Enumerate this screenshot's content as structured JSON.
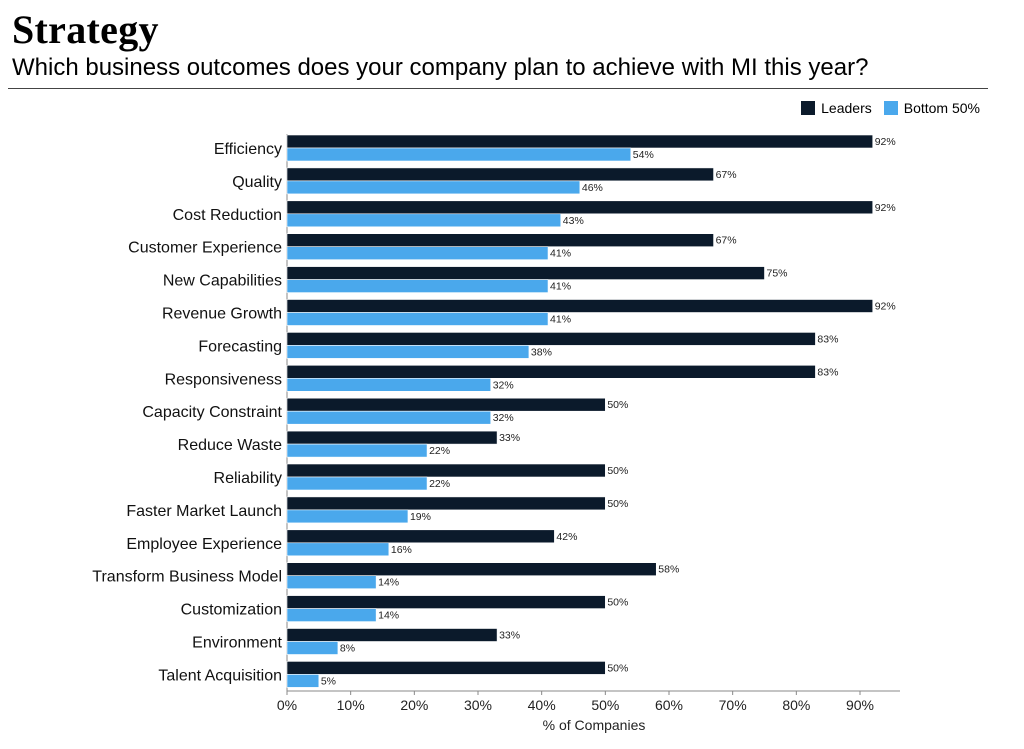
{
  "page": {
    "title": "Strategy",
    "subtitle": "Which business outcomes does your company plan to achieve with MI this year?"
  },
  "chart_data": {
    "type": "bar",
    "orientation": "horizontal",
    "categories": [
      "Efficiency",
      "Quality",
      "Cost Reduction",
      "Customer Experience",
      "New Capabilities",
      "Revenue Growth",
      "Forecasting",
      "Responsiveness",
      "Capacity Constraint",
      "Reduce Waste",
      "Reliability",
      "Faster Market Launch",
      "Employee Experience",
      "Transform Business Model",
      "Customization",
      "Environment",
      "Talent Acquisition"
    ],
    "series": [
      {
        "name": "Leaders",
        "color": "#0b1a2b",
        "values": [
          92,
          67,
          92,
          67,
          75,
          92,
          83,
          83,
          50,
          33,
          50,
          50,
          42,
          58,
          50,
          33,
          50
        ]
      },
      {
        "name": "Bottom 50%",
        "color": "#4aa8ec",
        "values": [
          54,
          46,
          43,
          41,
          41,
          41,
          38,
          32,
          32,
          22,
          22,
          19,
          16,
          14,
          14,
          8,
          5
        ]
      }
    ],
    "xlabel": "% of Companies",
    "ylabel": "",
    "xlim": [
      0,
      97
    ],
    "ticks": [
      0,
      10,
      20,
      30,
      40,
      50,
      60,
      70,
      80,
      90
    ],
    "tick_labels": [
      "0%",
      "10%",
      "20%",
      "30%",
      "40%",
      "50%",
      "60%",
      "70%",
      "80%",
      "90%"
    ],
    "value_suffix": "%",
    "legend_position": "top-right",
    "grid": false
  }
}
